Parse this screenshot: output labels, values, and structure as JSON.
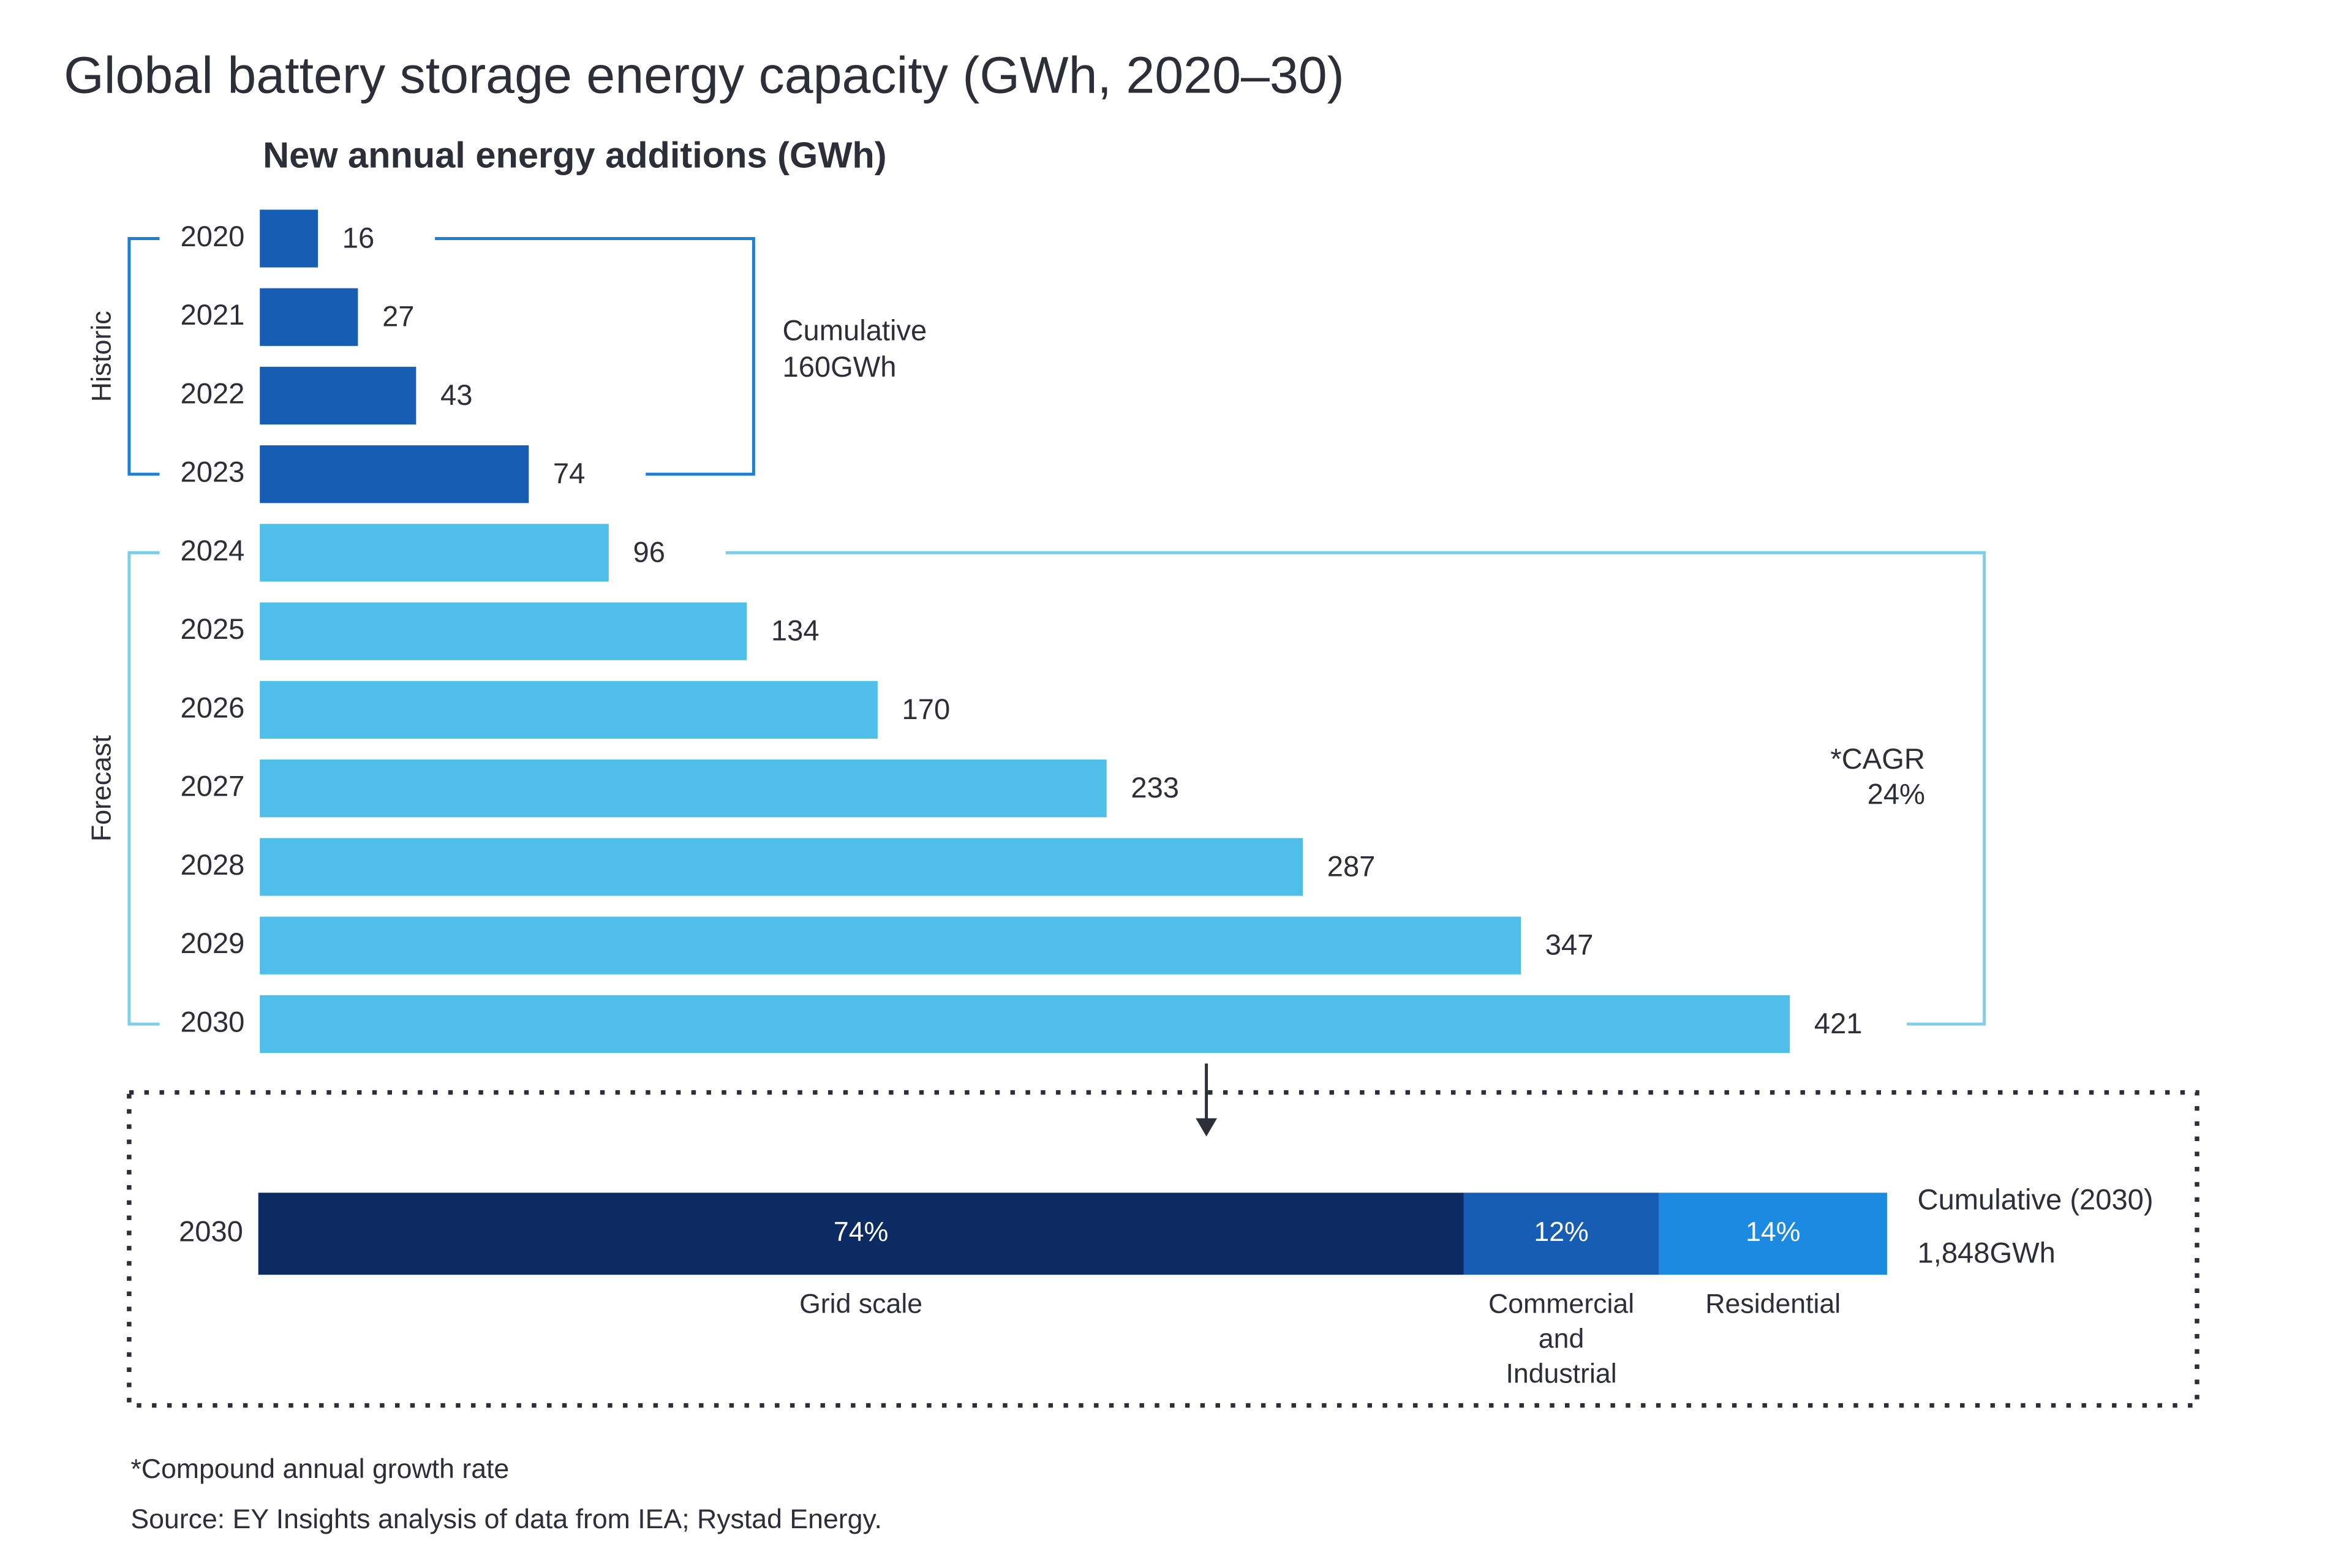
{
  "chart_data": [
    {
      "type": "bar",
      "title": "Global battery storage energy capacity (GWh, 2020–30)",
      "subtitle": "New annual energy additions (GWh)",
      "categories": [
        "2020",
        "2021",
        "2022",
        "2023",
        "2024",
        "2025",
        "2026",
        "2027",
        "2028",
        "2029",
        "2030"
      ],
      "values": [
        16,
        27,
        43,
        74,
        96,
        134,
        170,
        233,
        287,
        347,
        421
      ],
      "colors": [
        "#165db3",
        "#165db3",
        "#165db3",
        "#165db3",
        "#4fbfea",
        "#4fbfea",
        "#4fbfea",
        "#4fbfea",
        "#4fbfea",
        "#4fbfea",
        "#4fbfea"
      ],
      "groups": [
        {
          "name": "Historic",
          "color": "#165db3",
          "bracket_color": "#1f7fd0",
          "note": [
            "Cumulative",
            "160GWh"
          ]
        },
        {
          "name": "Forecast",
          "color": "#4fbfea",
          "bracket_color": "#7fcde8",
          "note": [
            "*CAGR",
            "24%"
          ]
        }
      ]
    },
    {
      "type": "stacked-bar",
      "categories": [
        "2030"
      ],
      "series": [
        {
          "name": "Grid scale",
          "color": "#0c2b63",
          "values": [
            74
          ],
          "value_labels": [
            "74%"
          ]
        },
        {
          "name": "Commercial and Industrial",
          "color": "#165db3",
          "values": [
            12
          ],
          "value_labels": [
            "12%"
          ]
        },
        {
          "name": "Residential",
          "color": "#1b8ae0",
          "values": [
            14
          ],
          "value_labels": [
            "14%"
          ]
        }
      ],
      "annotation": [
        "Cumulative (2030)",
        "1,848GWh"
      ]
    },
    {
      "type": "notes",
      "footnote": "*Compound annual growth rate",
      "source": "Source: EY Insights analysis of data from IEA; Rystad Energy."
    }
  ]
}
